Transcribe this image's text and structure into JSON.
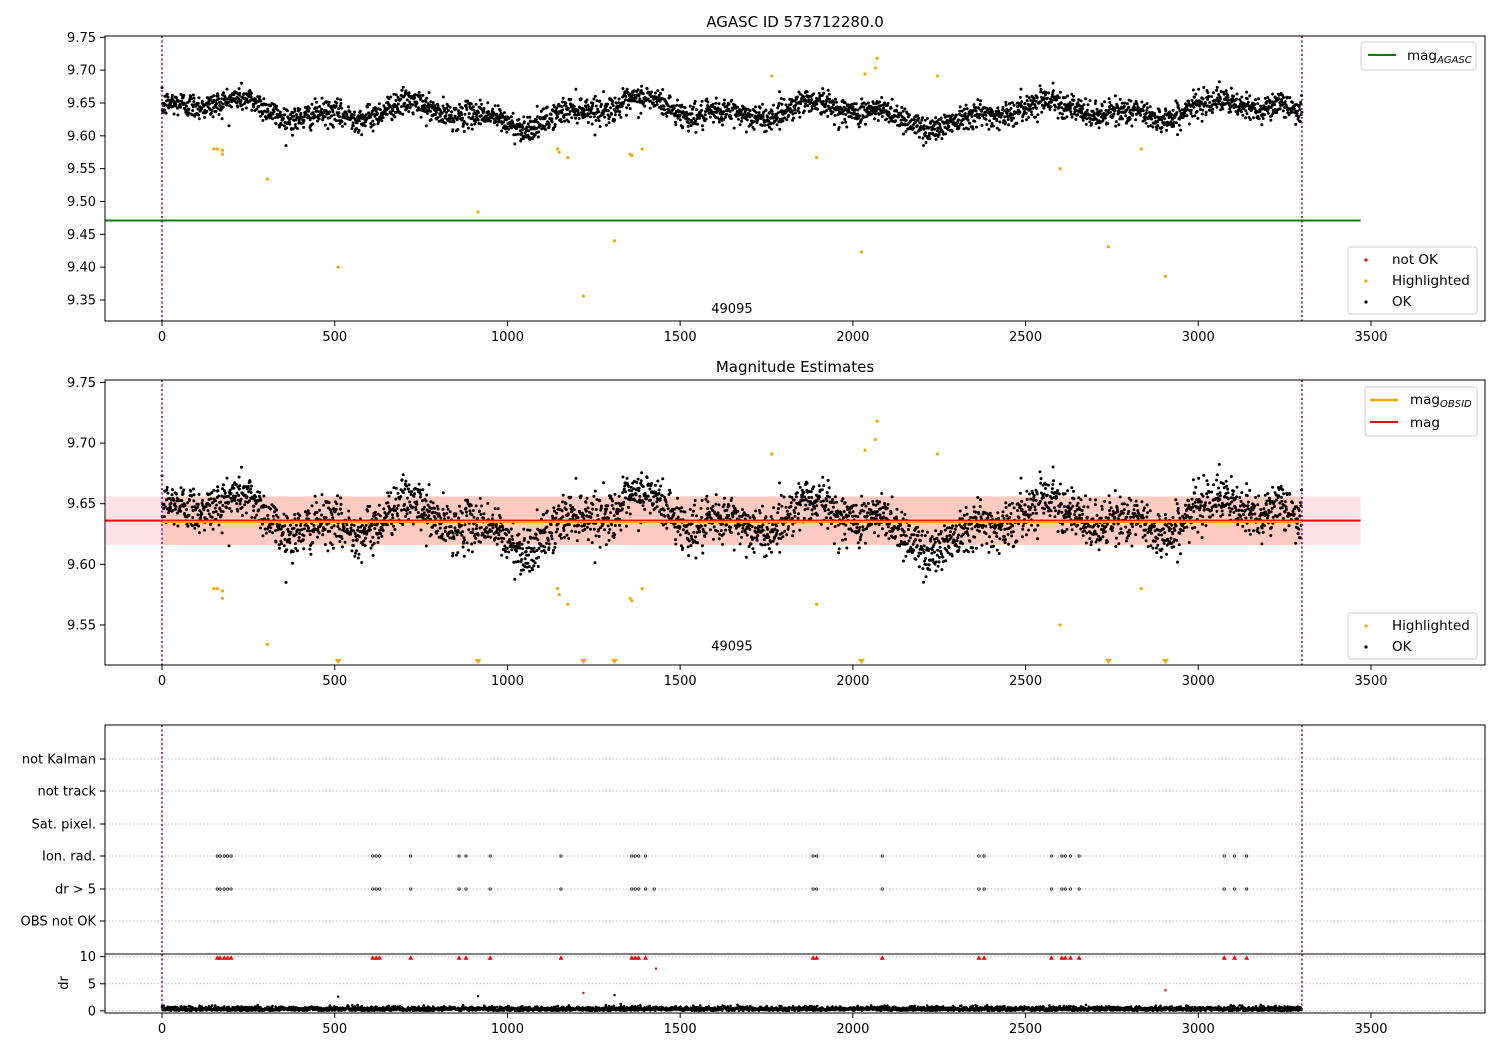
{
  "chart_data": [
    {
      "type": "scatter",
      "title": "AGASC ID 573712280.0",
      "xlim": [
        -165,
        3830
      ],
      "ylim": [
        9.318,
        9.752
      ],
      "x_ticks": [
        0,
        500,
        1000,
        1500,
        2000,
        2500,
        3000,
        3500
      ],
      "y_ticks": [
        9.35,
        9.4,
        9.45,
        9.5,
        9.55,
        9.6,
        9.65,
        9.7,
        9.75
      ],
      "vlines": [
        0,
        3300
      ],
      "hline": {
        "name": "mag_AGASC",
        "value": 9.471,
        "x_range": [
          -165,
          3470
        ],
        "color": "#008000"
      },
      "annotation": {
        "text": "49095",
        "x": 1650,
        "y": 9.33
      },
      "legend_lines": [
        {
          "label": "mag",
          "sub": "AGASC",
          "color": "#008000"
        }
      ],
      "legend_points": [
        {
          "label": "not OK",
          "color": "#ff0000"
        },
        {
          "label": "Highlighted",
          "color": "#ffa500"
        },
        {
          "label": "OK",
          "color": "#000000"
        }
      ],
      "series": [
        {
          "name": "OK",
          "color": "#000000",
          "n": 3300,
          "x_range": [
            0,
            3300
          ],
          "center": 9.636,
          "spread": 0.013
        },
        {
          "name": "Highlighted",
          "color": "#ffa500",
          "points": [
            [
              150,
              9.58
            ],
            [
              160,
              9.58
            ],
            [
              175,
              9.578
            ],
            [
              175,
              9.572
            ],
            [
              305,
              9.534
            ],
            [
              510,
              9.4
            ],
            [
              915,
              9.484
            ],
            [
              1145,
              9.58
            ],
            [
              1150,
              9.575
            ],
            [
              1175,
              9.567
            ],
            [
              1220,
              9.356
            ],
            [
              1310,
              9.44
            ],
            [
              1355,
              9.572
            ],
            [
              1360,
              9.57
            ],
            [
              1390,
              9.58
            ],
            [
              1765,
              9.691
            ],
            [
              1895,
              9.567
            ],
            [
              2025,
              9.423
            ],
            [
              2035,
              9.694
            ],
            [
              2065,
              9.703
            ],
            [
              2070,
              9.718
            ],
            [
              2245,
              9.691
            ],
            [
              2600,
              9.55
            ],
            [
              2740,
              9.431
            ],
            [
              2835,
              9.58
            ],
            [
              2905,
              9.386
            ]
          ]
        },
        {
          "name": "not OK",
          "color": "#ff0000",
          "points": []
        }
      ]
    },
    {
      "type": "scatter",
      "title": "Magnitude Estimates",
      "xlim": [
        -165,
        3830
      ],
      "ylim": [
        9.517,
        9.752
      ],
      "x_ticks": [
        0,
        500,
        1000,
        1500,
        2000,
        2500,
        3000,
        3500
      ],
      "y_ticks": [
        9.55,
        9.6,
        9.65,
        9.7,
        9.75
      ],
      "vlines": [
        0,
        3300
      ],
      "annotation": {
        "text": "49095",
        "x": 1650,
        "y": 9.529
      },
      "mag_line": {
        "name": "mag",
        "value": 9.636,
        "x_range": [
          -165,
          3470
        ],
        "color": "#ff0000",
        "band": [
          9.616,
          9.656
        ]
      },
      "mag_obsid": {
        "name": "mag_OBSID",
        "value": 9.635,
        "x_range": [
          0,
          3300
        ],
        "color": "#ffa500",
        "band": [
          9.616,
          9.656
        ]
      },
      "legend_lines": [
        {
          "label": "mag",
          "sub": "OBSID",
          "color": "#ffa500"
        },
        {
          "label": "mag",
          "sub": "",
          "color": "#ff0000"
        }
      ],
      "legend_points": [
        {
          "label": "Highlighted",
          "color": "#ffa500"
        },
        {
          "label": "OK",
          "color": "#000000"
        }
      ],
      "clipped_markers_x": [
        510,
        915,
        1220,
        1310,
        2025,
        2740,
        2905
      ]
    },
    {
      "type": "scatter",
      "title": "",
      "xlim": [
        -165,
        3830
      ],
      "x_ticks": [
        0,
        500,
        1000,
        1500,
        2000,
        2500,
        3000,
        3500
      ],
      "categories": [
        "not Kalman",
        "not track",
        "Sat. pixel.",
        "Ion. rad.",
        "dr > 5",
        "OBS not OK"
      ],
      "vlines": [
        0,
        3300
      ],
      "flag_x": [
        160,
        168,
        180,
        190,
        200,
        610,
        620,
        630,
        720,
        860,
        880,
        950,
        1155,
        1360,
        1370,
        1380,
        1400,
        1425,
        1885,
        1895,
        2085,
        2365,
        2380,
        2575,
        2605,
        2615,
        2630,
        2655,
        3075,
        3105,
        3140
      ],
      "ion_rad_x": [
        160,
        168,
        180,
        190,
        200,
        610,
        620,
        630,
        720,
        860,
        880,
        950,
        1155,
        1360,
        1370,
        1380,
        1400,
        1885,
        1895,
        2085,
        2365,
        2380,
        2575,
        2605,
        2615,
        2630,
        2655,
        3075,
        3105,
        3140
      ]
    },
    {
      "type": "scatter",
      "title": "",
      "ylabel": "dr",
      "xlim": [
        -165,
        3830
      ],
      "ylim": [
        -0.4,
        10.5
      ],
      "x_ticks": [
        0,
        500,
        1000,
        1500,
        2000,
        2500,
        3000,
        3500
      ],
      "y_ticks": [
        0,
        5,
        10
      ],
      "vlines": [
        0,
        3300
      ],
      "outliers": [
        [
          510,
          2.6
        ],
        [
          915,
          2.7
        ],
        [
          1220,
          3.3
        ],
        [
          1310,
          2.9
        ],
        [
          1430,
          7.8
        ],
        [
          2905,
          3.8
        ]
      ],
      "clipped_x": [
        160,
        168,
        180,
        190,
        200,
        610,
        620,
        630,
        720,
        860,
        880,
        950,
        1155,
        1360,
        1370,
        1380,
        1400,
        1885,
        1895,
        2085,
        2365,
        2380,
        2575,
        2605,
        2615,
        2630,
        2655,
        3075,
        3105,
        3140
      ]
    }
  ]
}
